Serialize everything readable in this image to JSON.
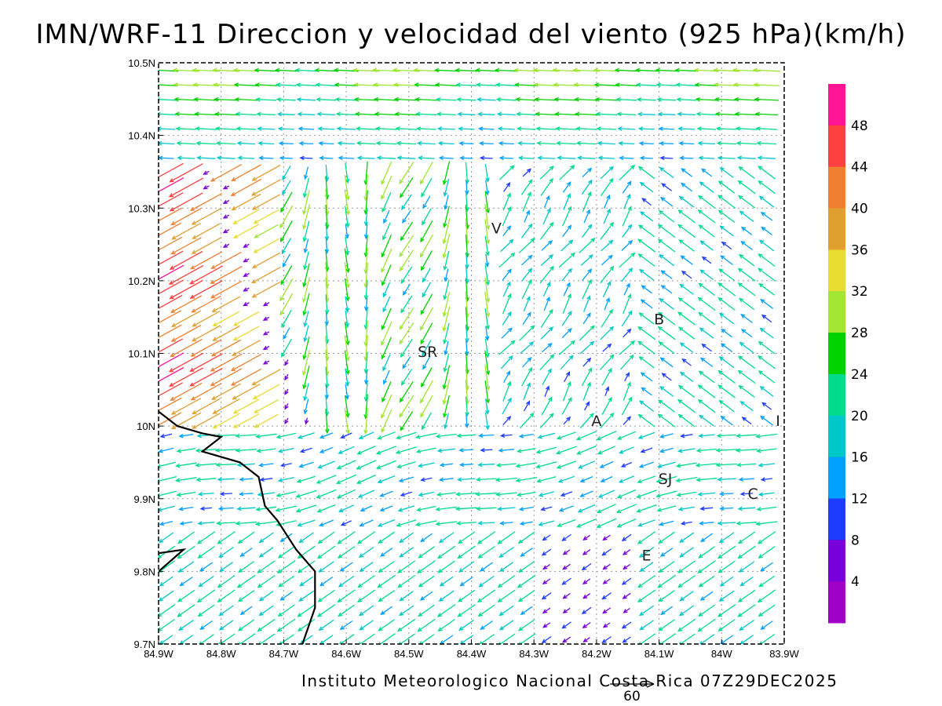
{
  "title": "IMN/WRF-11 Direccion y velocidad del viento (925 hPa)(km/h)",
  "footer": "Instituto Meteorologico Nacional Costa Rica 07Z29DEC2025",
  "reference_vector": {
    "label": "60",
    "value_kmh": 60
  },
  "map": {
    "region": "Costa Rica (central)",
    "lon_range": [
      -84.9,
      -83.9
    ],
    "lat_range": [
      9.7,
      10.5
    ],
    "grid": "dotted",
    "x_ticks": [
      {
        "value": -84.9,
        "label": "84.9W"
      },
      {
        "value": -84.8,
        "label": "84.8W"
      },
      {
        "value": -84.7,
        "label": "84.7W"
      },
      {
        "value": -84.6,
        "label": "84.6W"
      },
      {
        "value": -84.5,
        "label": "84.5W"
      },
      {
        "value": -84.4,
        "label": "84.4W"
      },
      {
        "value": -84.3,
        "label": "84.3W"
      },
      {
        "value": -84.2,
        "label": "84.2W"
      },
      {
        "value": -84.1,
        "label": "84.1W"
      },
      {
        "value": -84.0,
        "label": "84W"
      },
      {
        "value": -83.9,
        "label": "83.9W"
      }
    ],
    "y_ticks": [
      {
        "value": 10.5,
        "label": "10.5N"
      },
      {
        "value": 10.4,
        "label": "10.4N"
      },
      {
        "value": 10.3,
        "label": "10.3N"
      },
      {
        "value": 10.2,
        "label": "10.2N"
      },
      {
        "value": 10.1,
        "label": "10.1N"
      },
      {
        "value": 10.0,
        "label": "10N"
      },
      {
        "value": 9.9,
        "label": "9.9N"
      },
      {
        "value": 9.8,
        "label": "9.8N"
      },
      {
        "value": 9.7,
        "label": "9.7N"
      }
    ],
    "cities": [
      {
        "label": "V",
        "lon": -84.36,
        "lat": 10.265
      },
      {
        "label": "B",
        "lon": -84.1,
        "lat": 10.14
      },
      {
        "label": "SR",
        "lon": -84.47,
        "lat": 10.095
      },
      {
        "label": "A",
        "lon": -84.2,
        "lat": 10.0
      },
      {
        "label": "I",
        "lon": -83.91,
        "lat": 10.0
      },
      {
        "label": "SJ",
        "lon": -84.09,
        "lat": 9.92
      },
      {
        "label": "C",
        "lon": -83.95,
        "lat": 9.9
      },
      {
        "label": "E",
        "lon": -84.12,
        "lat": 9.815
      }
    ],
    "coastline": [
      [
        -84.9,
        10.02
      ],
      [
        -84.87,
        10.0
      ],
      [
        -84.83,
        9.99
      ],
      [
        -84.8,
        9.985
      ],
      [
        -84.83,
        9.965
      ],
      [
        -84.77,
        9.95
      ],
      [
        -84.74,
        9.93
      ],
      [
        -84.73,
        9.89
      ],
      [
        -84.71,
        9.87
      ],
      [
        -84.68,
        9.83
      ],
      [
        -84.65,
        9.8
      ],
      [
        -84.65,
        9.75
      ],
      [
        -84.67,
        9.7
      ]
    ],
    "coastline_b": [
      [
        -84.9,
        9.825
      ],
      [
        -84.86,
        9.83
      ],
      [
        -84.9,
        9.8
      ]
    ]
  },
  "colorbar": {
    "labels": [
      "48",
      "44",
      "40",
      "36",
      "32",
      "28",
      "24",
      "20",
      "16",
      "12",
      "8",
      "4"
    ],
    "colors": [
      "#ff1493",
      "#ff4040",
      "#f08030",
      "#e0a030",
      "#e6dc32",
      "#a0e632",
      "#00d200",
      "#00dc8c",
      "#00c8c8",
      "#00a0ff",
      "#1e3cff",
      "#7800dc",
      "#a000c8"
    ]
  },
  "wind_levels": [
    4,
    8,
    12,
    16,
    20,
    24,
    28,
    32,
    36,
    40,
    44,
    48
  ]
}
